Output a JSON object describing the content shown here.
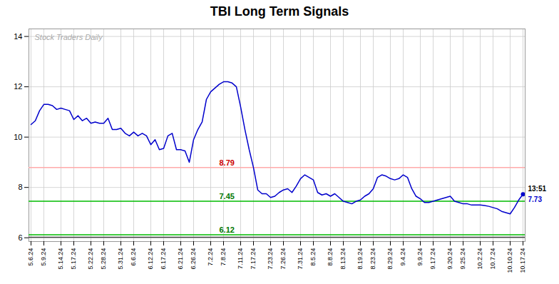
{
  "chart_data": {
    "type": "line",
    "title": "TBI Long Term Signals",
    "categories": [
      "5.6.24",
      null,
      null,
      "5.9.24",
      null,
      null,
      null,
      "5.14.24",
      null,
      null,
      "5.17.24",
      null,
      null,
      null,
      "5.22.24",
      null,
      null,
      "5.28.24",
      null,
      null,
      null,
      "5.31.24",
      null,
      null,
      "6.6.24",
      null,
      null,
      null,
      "6.12.24",
      null,
      null,
      "6.17.24",
      null,
      null,
      null,
      "6.21.24",
      null,
      null,
      "6.26.24",
      null,
      null,
      null,
      "7.2.24",
      null,
      null,
      "7.8.24",
      null,
      null,
      null,
      "7.11.24",
      null,
      null,
      "7.17.24",
      null,
      null,
      null,
      "7.23.24",
      null,
      null,
      "7.26.24",
      null,
      null,
      null,
      "7.31.24",
      null,
      null,
      "8.5.24",
      null,
      null,
      null,
      "8.8.24",
      null,
      null,
      "8.13.24",
      null,
      null,
      null,
      "8.19.24",
      null,
      null,
      "8.23.24",
      null,
      null,
      null,
      "8.29.24",
      null,
      null,
      "9.4.24",
      null,
      null,
      null,
      "9.9.24",
      null,
      null,
      "9.17.24",
      null,
      null,
      null,
      "9.20.24",
      null,
      null,
      "9.25.24",
      null,
      null,
      null,
      "10.2.24",
      null,
      null,
      "10.7.24",
      null,
      null,
      null,
      "10.10.24",
      null,
      null,
      "10.17.24"
    ],
    "values": [
      10.5,
      10.65,
      11.05,
      11.3,
      11.3,
      11.25,
      11.1,
      11.15,
      11.1,
      11.05,
      10.7,
      10.85,
      10.65,
      10.75,
      10.55,
      10.6,
      10.55,
      10.55,
      10.75,
      10.3,
      10.3,
      10.35,
      10.15,
      10.05,
      10.2,
      10.05,
      10.15,
      10.05,
      9.7,
      9.9,
      9.5,
      9.55,
      10.05,
      10.15,
      9.5,
      9.5,
      9.45,
      9.0,
      9.9,
      10.3,
      10.6,
      11.5,
      11.8,
      11.95,
      12.1,
      12.2,
      12.2,
      12.15,
      12.0,
      11.2,
      10.3,
      9.5,
      8.79,
      7.9,
      7.75,
      7.75,
      7.6,
      7.65,
      7.8,
      7.9,
      7.95,
      7.8,
      8.05,
      8.35,
      8.5,
      8.4,
      8.3,
      7.8,
      7.7,
      7.75,
      7.65,
      7.75,
      7.6,
      7.45,
      7.4,
      7.35,
      7.45,
      7.5,
      7.65,
      7.75,
      7.95,
      8.4,
      8.5,
      8.45,
      8.35,
      8.3,
      8.35,
      8.5,
      8.4,
      7.95,
      7.65,
      7.55,
      7.4,
      7.4,
      7.45,
      7.5,
      7.55,
      7.6,
      7.65,
      7.45,
      7.4,
      7.35,
      7.35,
      7.3,
      7.3,
      7.3,
      7.28,
      7.25,
      7.2,
      7.15,
      7.05,
      7.0,
      6.95,
      7.2,
      7.5,
      7.73
    ],
    "color": "#0000cc",
    "ylim": [
      5.85,
      14.3
    ],
    "yticks": [
      6,
      8,
      10,
      12,
      14
    ],
    "grid": true,
    "hlines": [
      {
        "y": 8.79,
        "color": "#ffaaaa",
        "label": "8.79",
        "label_color": "#cc0000"
      },
      {
        "y": 7.45,
        "color": "#00bb00",
        "label": "7.45",
        "label_color": "#007700"
      },
      {
        "y": 6.12,
        "color": "#00bb00",
        "label": "6.12",
        "label_color": "#007700"
      },
      {
        "y": 6.02,
        "color": "#444444"
      }
    ],
    "end_annotations": [
      {
        "text": "13:51",
        "color": "#000000"
      },
      {
        "text": "7.73",
        "color": "#0000cc"
      }
    ],
    "watermark": {
      "text": "Stock Traders Daily",
      "color": "#aaaaaa"
    }
  }
}
